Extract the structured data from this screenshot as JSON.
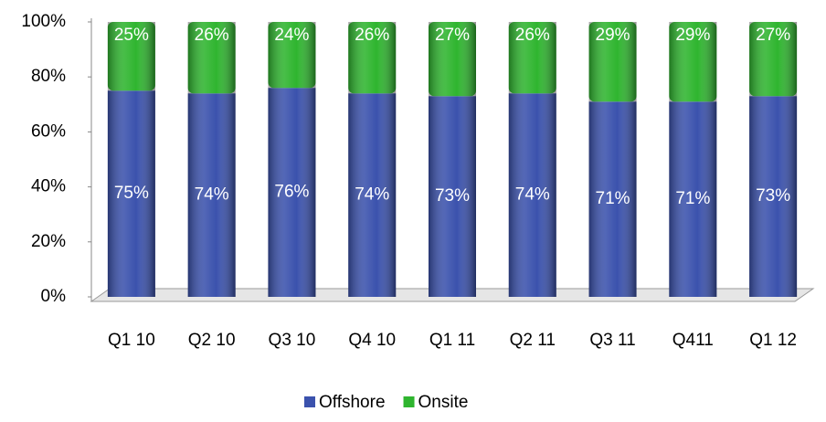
{
  "chart_data": {
    "type": "stacked_bar",
    "categories": [
      "Q1 10",
      "Q2 10",
      "Q3 10",
      "Q4 10",
      "Q1 11",
      "Q2 11",
      "Q3 11",
      "Q411",
      "Q1 12"
    ],
    "series": [
      {
        "name": "Offshore",
        "color": "#3b52ad",
        "values": [
          75,
          74,
          76,
          74,
          73,
          74,
          71,
          71,
          73
        ],
        "value_labels": [
          "75%",
          "74%",
          "76%",
          "74%",
          "73%",
          "74%",
          "71%",
          "71%",
          "73%"
        ]
      },
      {
        "name": "Onsite",
        "color": "#2fb52f",
        "values": [
          25,
          26,
          24,
          26,
          27,
          26,
          29,
          29,
          27
        ],
        "value_labels": [
          "25%",
          "26%",
          "24%",
          "26%",
          "27%",
          "26%",
          "29%",
          "29%",
          "27%"
        ]
      }
    ],
    "ylim": [
      0,
      100
    ],
    "yticks": [
      {
        "value": 0,
        "label": "0%"
      },
      {
        "value": 20,
        "label": "20%"
      },
      {
        "value": 40,
        "label": "40%"
      },
      {
        "value": 60,
        "label": "60%"
      },
      {
        "value": 80,
        "label": "80%"
      },
      {
        "value": 100,
        "label": "100%"
      }
    ],
    "legend": "bottom"
  }
}
